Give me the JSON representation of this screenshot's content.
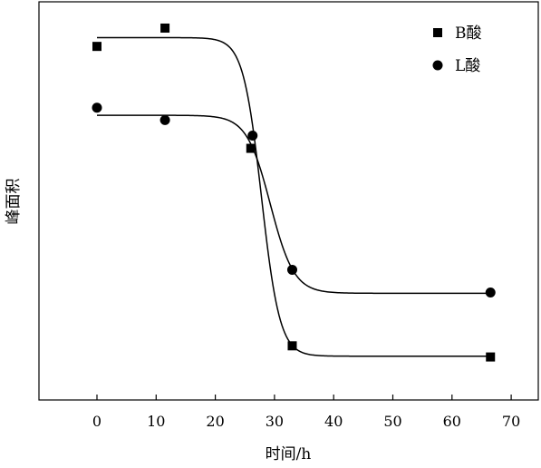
{
  "chart_data": {
    "type": "scatter",
    "xlabel": "时间/h",
    "ylabel": "峰面积",
    "xlim": [
      -10,
      75
    ],
    "ylim": [
      0,
      1
    ],
    "y_ticks_shown": false,
    "grid": false,
    "legend_position": "top-right",
    "x_ticks": [
      0,
      10,
      20,
      30,
      40,
      50,
      60,
      70
    ],
    "series": [
      {
        "name": "B酸",
        "marker": "square",
        "points": [
          [
            0,
            0.888
          ],
          [
            11.5,
            0.934
          ],
          [
            26,
            0.632
          ],
          [
            33,
            0.136
          ],
          [
            66.5,
            0.108
          ]
        ],
        "fit": {
          "type": "sigmoid",
          "top": 0.91,
          "bottom": 0.11,
          "x0": 27.8,
          "k": 1.55
        }
      },
      {
        "name": "L酸",
        "marker": "circle",
        "points": [
          [
            0,
            0.734
          ],
          [
            11.5,
            0.703
          ],
          [
            26.3,
            0.664
          ],
          [
            33,
            0.327
          ],
          [
            66.5,
            0.27
          ]
        ],
        "fit": {
          "type": "sigmoid",
          "top": 0.715,
          "bottom": 0.268,
          "x0": 29.3,
          "k": 2.0
        }
      }
    ]
  }
}
